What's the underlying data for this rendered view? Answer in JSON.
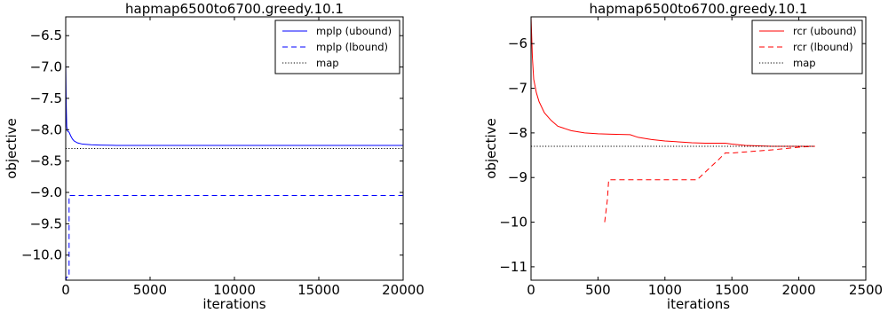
{
  "chart_data": [
    {
      "type": "line",
      "title": "hapmap6500to6700.greedy.10.1",
      "xlabel": "iterations",
      "ylabel": "objective",
      "xlim": [
        0,
        20000
      ],
      "ylim": [
        -10.4,
        -6.2
      ],
      "xticks": [
        0,
        5000,
        10000,
        15000,
        20000
      ],
      "xtick_labels": [
        "0",
        "5000",
        "10000",
        "15000",
        "20000"
      ],
      "yticks": [
        -10.0,
        -9.5,
        -9.0,
        -8.5,
        -8.0,
        -7.5,
        -7.0,
        -6.5
      ],
      "ytick_labels": [
        "−10.0",
        "−9.5",
        "−9.0",
        "−8.5",
        "−8.0",
        "−7.5",
        "−7.0",
        "−6.5"
      ],
      "legend_position": "top-right",
      "series": [
        {
          "name": "mplp (ubound)",
          "color": "#0000ff",
          "style": "solid",
          "x": [
            0,
            30,
            60,
            100,
            150,
            200,
            300,
            400,
            500,
            700,
            1000,
            1500,
            2000,
            3000,
            5000,
            8000,
            12000,
            16000,
            20000
          ],
          "y": [
            -6.9,
            -7.6,
            -7.95,
            -8.02,
            -8.03,
            -8.04,
            -8.1,
            -8.15,
            -8.18,
            -8.21,
            -8.23,
            -8.24,
            -8.245,
            -8.25,
            -8.25,
            -8.25,
            -8.25,
            -8.25,
            -8.25
          ]
        },
        {
          "name": "mplp (lbound)",
          "color": "#0000ff",
          "style": "dashed",
          "x": [
            0,
            30,
            30,
            200,
            200,
            20000
          ],
          "y": [
            -10.4,
            -10.4,
            -10.35,
            -10.35,
            -9.05,
            -9.05
          ]
        },
        {
          "name": "map",
          "color": "#000000",
          "style": "dotted",
          "x": [
            0,
            20000
          ],
          "y": [
            -8.3,
            -8.3
          ]
        }
      ]
    },
    {
      "type": "line",
      "title": "hapmap6500to6700.greedy.10.1",
      "xlabel": "iterations",
      "ylabel": "objective",
      "xlim": [
        0,
        2500
      ],
      "ylim": [
        -11.3,
        -5.4
      ],
      "xticks": [
        0,
        500,
        1000,
        1500,
        2000,
        2500
      ],
      "xtick_labels": [
        "0",
        "500",
        "1000",
        "1500",
        "2000",
        "2500"
      ],
      "yticks": [
        -11,
        -10,
        -9,
        -8,
        -7,
        -6
      ],
      "ytick_labels": [
        "−11",
        "−10",
        "−9",
        "−8",
        "−7",
        "−6"
      ],
      "legend_position": "top-right",
      "series": [
        {
          "name": "rcr (ubound)",
          "color": "#ff0000",
          "style": "solid",
          "x": [
            0,
            10,
            20,
            40,
            60,
            100,
            150,
            200,
            300,
            400,
            500,
            600,
            740,
            800,
            900,
            1000,
            1100,
            1200,
            1300,
            1450,
            1500,
            1600,
            1800,
            2000,
            2120
          ],
          "y": [
            -5.4,
            -6.3,
            -6.8,
            -7.1,
            -7.3,
            -7.55,
            -7.72,
            -7.85,
            -7.95,
            -8.0,
            -8.02,
            -8.03,
            -8.04,
            -8.1,
            -8.15,
            -8.18,
            -8.2,
            -8.22,
            -8.23,
            -8.23,
            -8.25,
            -8.28,
            -8.3,
            -8.3,
            -8.3
          ]
        },
        {
          "name": "rcr (lbound)",
          "color": "#ff0000",
          "style": "dashed",
          "x": [
            550,
            570,
            580,
            600,
            1240,
            1400,
            1450,
            1500,
            1800,
            2000,
            2120
          ],
          "y": [
            -10.0,
            -9.5,
            -9.05,
            -9.05,
            -9.05,
            -8.6,
            -8.45,
            -8.45,
            -8.38,
            -8.32,
            -8.3
          ]
        },
        {
          "name": "map",
          "color": "#000000",
          "style": "dotted",
          "x": [
            0,
            2120
          ],
          "y": [
            -8.3,
            -8.3
          ]
        }
      ]
    }
  ]
}
